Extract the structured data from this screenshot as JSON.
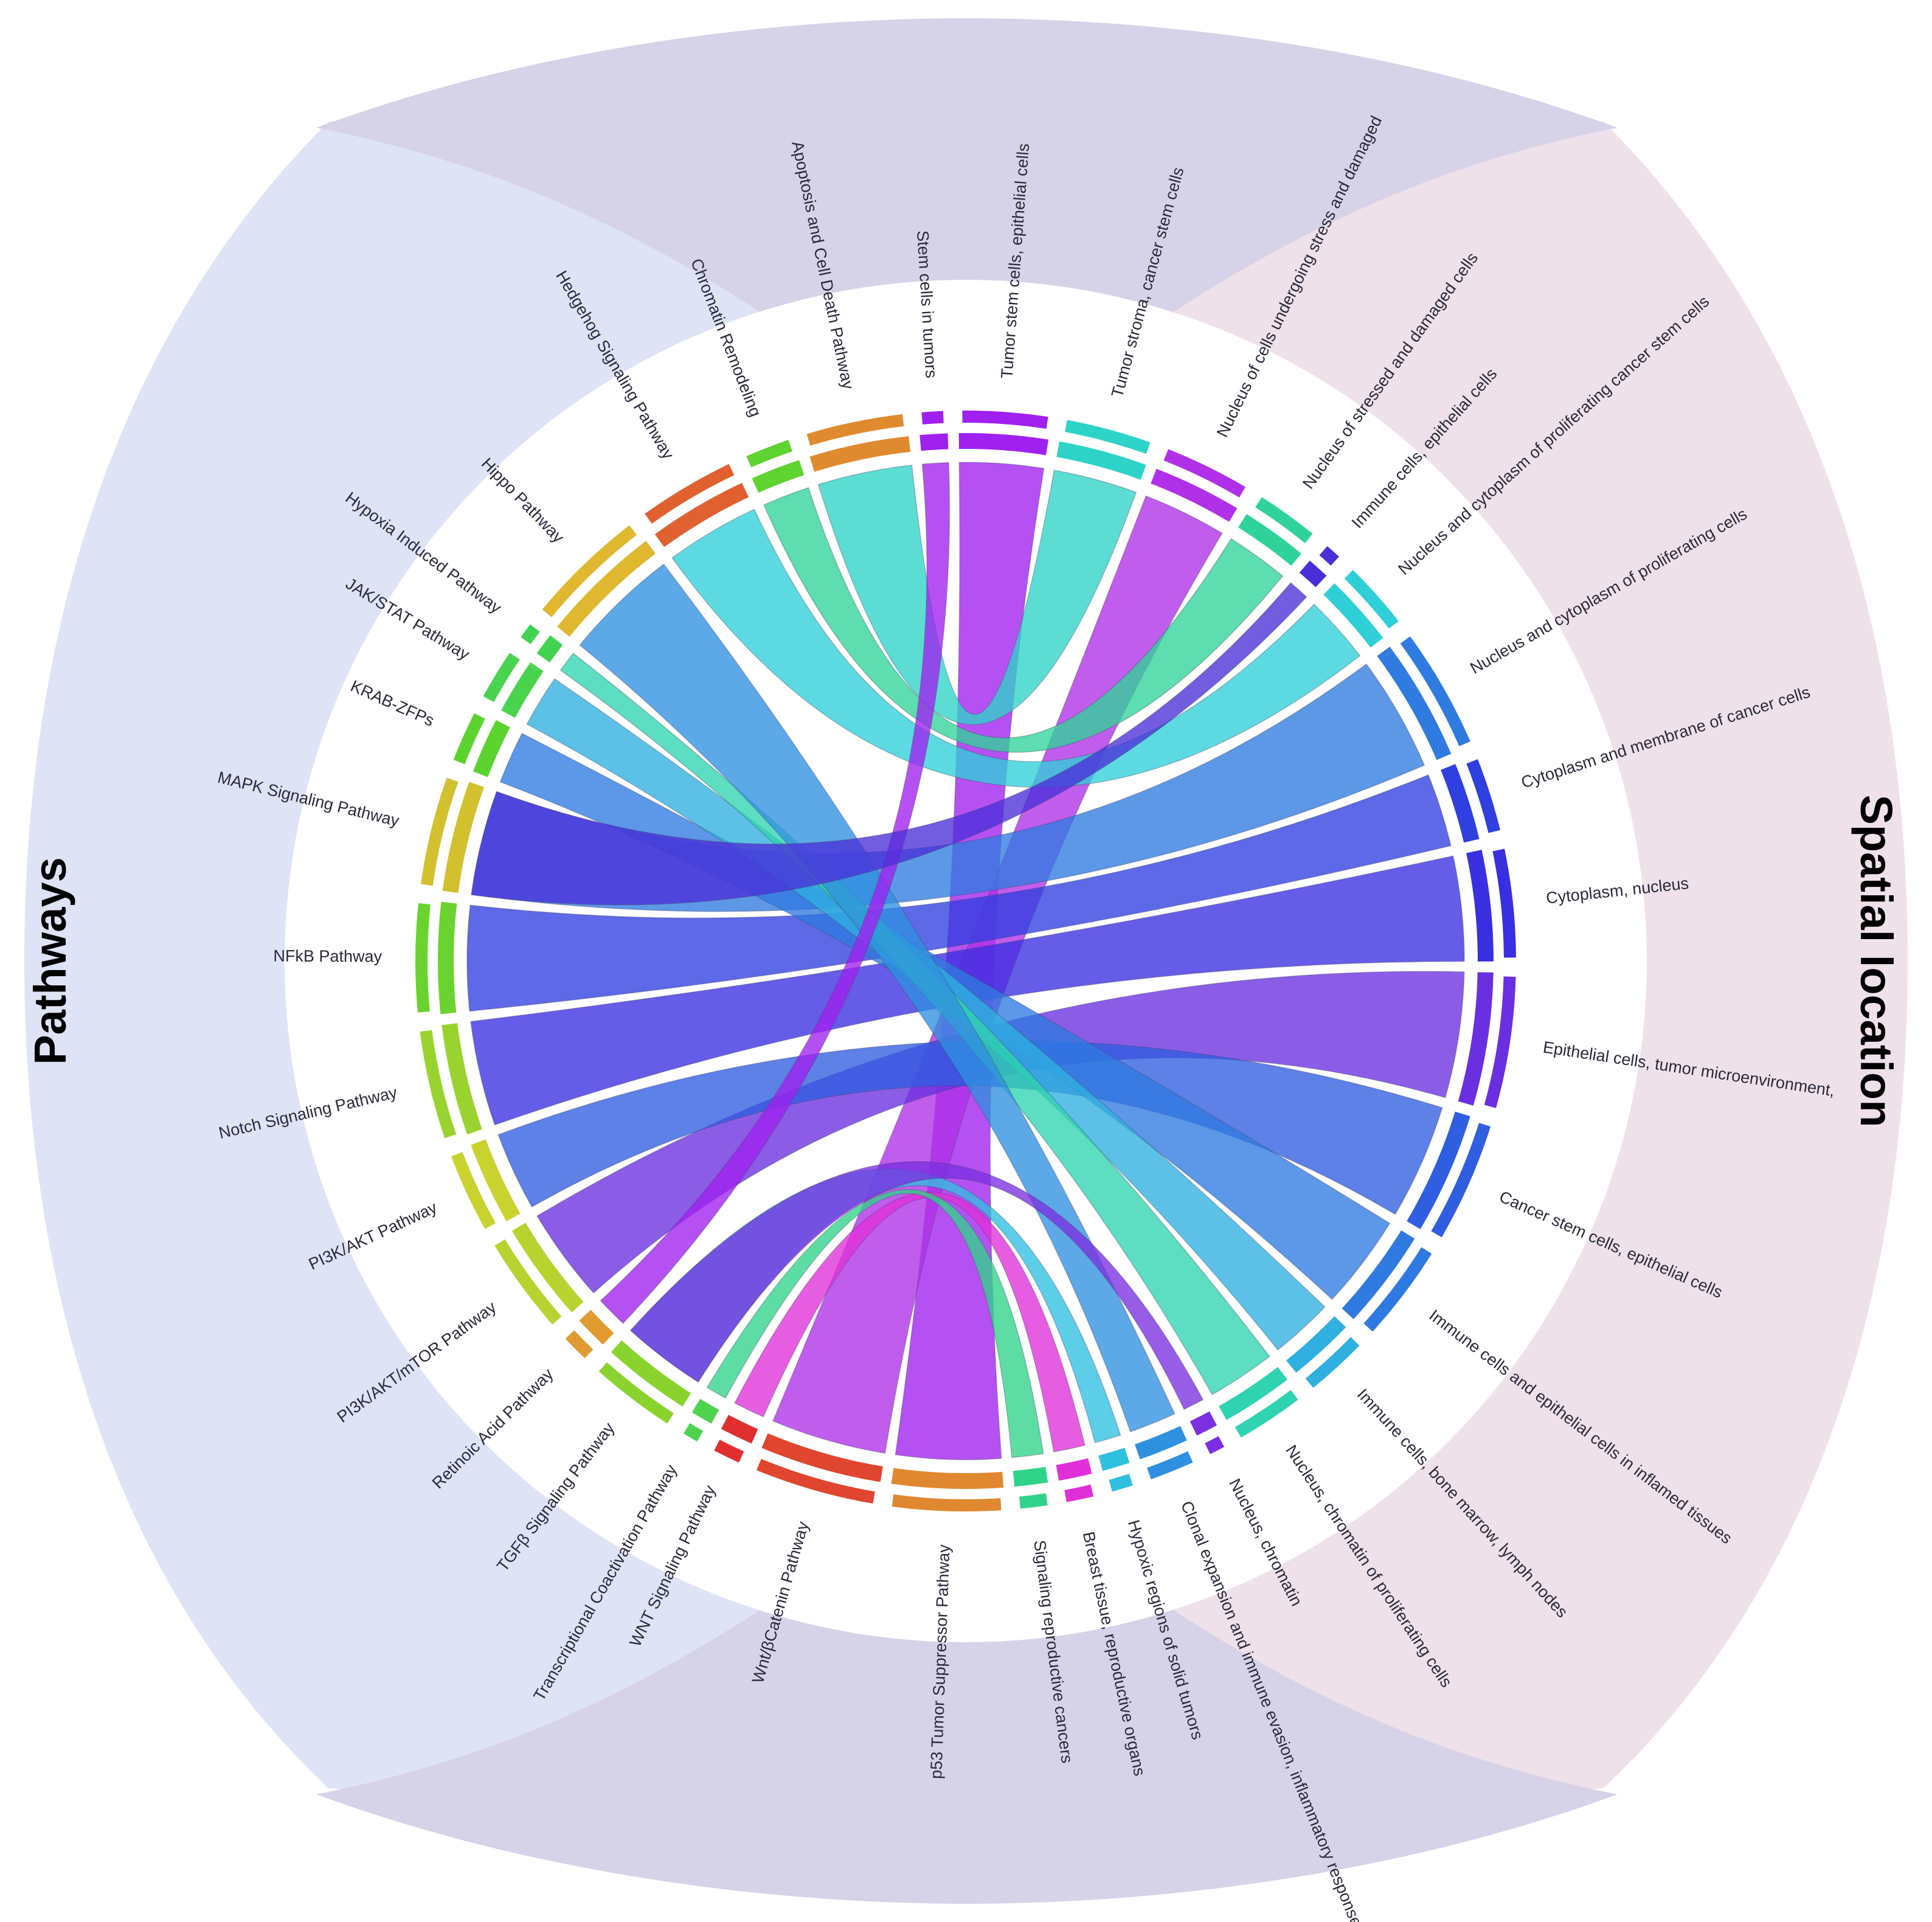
{
  "titles": {
    "left": "Pathways",
    "right": "Spatial location"
  },
  "colors": {
    "left_bg": "#dfe3f6",
    "right_bg": "#efe1ea",
    "overlap_bg": "#d6d3e8"
  },
  "segments": [
    {
      "label": "Stem cells in tumors",
      "color": "#a020f0"
    },
    {
      "label": "Tumor stem cells, epithelial cells",
      "color": "#a020f0"
    },
    {
      "label": "Tumor stroma, cancer stem cells",
      "color": "#2ed3c8"
    },
    {
      "label": "Nucleus of cells undergoing stress and damaged",
      "color": "#b030e8"
    },
    {
      "label": "Nucleus of stressed and damaged cells",
      "color": "#2fd39a"
    },
    {
      "label": "Immune cells, epithelial cells",
      "color": "#4a2fd8"
    },
    {
      "label": "Nucleus and cytoplasm of proliferating cancer stem cells",
      "color": "#2fcfd8"
    },
    {
      "label": "Nucleus and cytoplasm of proliferating cells",
      "color": "#2f7be0"
    },
    {
      "label": "Cytoplasm and membrane of cancer cells",
      "color": "#2f3fe0"
    },
    {
      "label": "Cytoplasm, nucleus",
      "color": "#3a2fe0"
    },
    {
      "label": "Epithelial cells, tumor microenvironment,",
      "color": "#6a2fe0"
    },
    {
      "label": "Cancer stem cells, epithelial cells",
      "color": "#2f5ee0"
    },
    {
      "label": "Immune cells and epithelial cells in inflamed tissues",
      "color": "#2f7ae0"
    },
    {
      "label": "Immune cells, bone marrow, lymph nodes",
      "color": "#2fb0e0"
    },
    {
      "label": "Nucleus, chromatin of proliferating cells",
      "color": "#2fd3b0"
    },
    {
      "label": "Nucleus, chromatin",
      "color": "#7a2fe0"
    },
    {
      "label": "Clonal expansion and immune evasion, inflammatory response",
      "color": "#2f90e0"
    },
    {
      "label": "Hypoxic regions of solid tumors",
      "color": "#2fc0e0"
    },
    {
      "label": "Breast tissue, reproductive organs",
      "color": "#e02fd8"
    },
    {
      "label": "Signaling reproductive cancers",
      "color": "#2fd38a"
    },
    {
      "label": "p53 Tumor Suppressor Pathway",
      "color": "#e0882f"
    },
    {
      "label": "Wnt/βCatenin Pathway",
      "color": "#e0452f"
    },
    {
      "label": "WNT Signaling Pathway",
      "color": "#e02f2f"
    },
    {
      "label": "Transcriptional Coactivation Pathway",
      "color": "#4fd34f"
    },
    {
      "label": "TGFβ Signaling Pathway",
      "color": "#8ad32f"
    },
    {
      "label": "Retinoic Acid Pathway",
      "color": "#e09a2f"
    },
    {
      "label": "PI3K/AKT/mTOR Pathway",
      "color": "#b8d32f"
    },
    {
      "label": "PI3K/AKT Pathway",
      "color": "#c8d32f"
    },
    {
      "label": "Notch Signaling Pathway",
      "color": "#9ad32f"
    },
    {
      "label": "NFkB Pathway",
      "color": "#6ad32f"
    },
    {
      "label": "MAPK Signaling Pathway",
      "color": "#d3c02f"
    },
    {
      "label": "KRAB-ZFPs",
      "color": "#5ad32f"
    },
    {
      "label": "JAK/STAT Pathway",
      "color": "#4ad34f"
    },
    {
      "label": "Hypoxia Induced Pathway",
      "color": "#3fd34f"
    },
    {
      "label": "Hippo Pathway",
      "color": "#e0b82f"
    },
    {
      "label": "Hedgehog Signaling Pathway",
      "color": "#e0602f"
    },
    {
      "label": "Chromatin Remodeling",
      "color": "#5fd32f"
    },
    {
      "label": "Apoptosis and Cell Death Pathway",
      "color": "#e08a2f"
    }
  ]
}
